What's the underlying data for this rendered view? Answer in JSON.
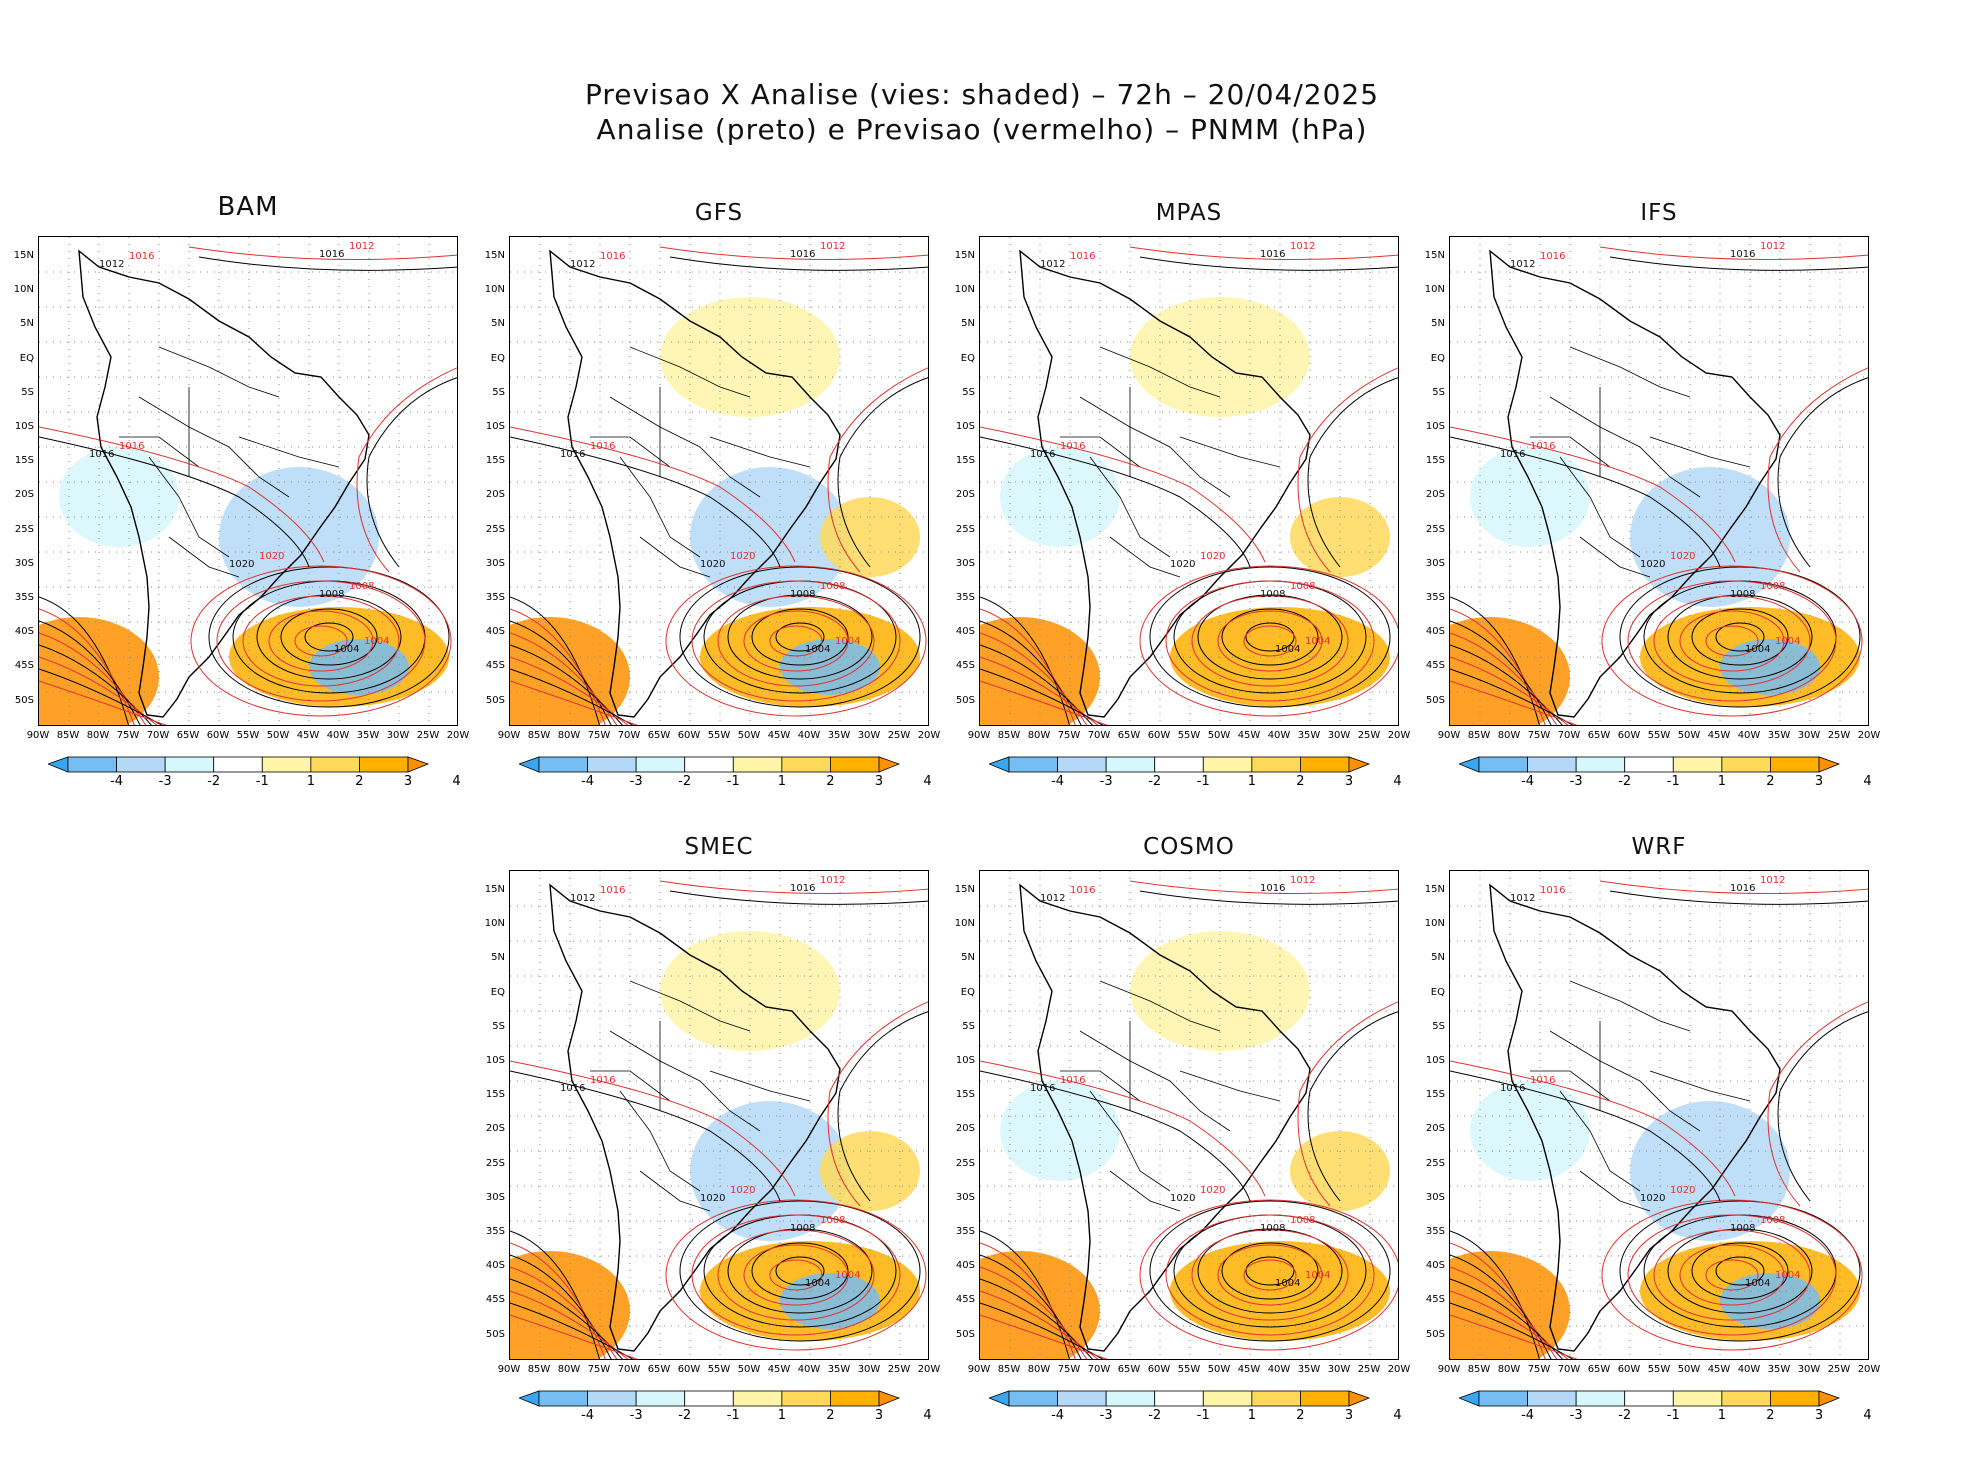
{
  "title_line1": "Previsao X Analise (vies: shaded) – 72h – 20/04/2025",
  "title_line2": "Analise (preto) e Previsao (vermelho) – PNMM (hPa)",
  "lat_labels": [
    "15N",
    "10N",
    "5N",
    "EQ",
    "5S",
    "10S",
    "15S",
    "20S",
    "25S",
    "30S",
    "35S",
    "40S",
    "45S",
    "50S"
  ],
  "lon_labels": [
    "90W",
    "85W",
    "80W",
    "75W",
    "70W",
    "65W",
    "60W",
    "55W",
    "50W",
    "45W",
    "40W",
    "35W",
    "30W",
    "25W",
    "20W"
  ],
  "colorbar": {
    "labels": [
      "-4",
      "-3",
      "-2",
      "-1",
      "1",
      "2",
      "3",
      "4"
    ],
    "colors": [
      "#3aa6f0",
      "#76bdf3",
      "#b4d8f7",
      "#d6f7fb",
      "#ffffff",
      "#fff4a8",
      "#ffd95a",
      "#ffb000",
      "#ff9000"
    ]
  },
  "panels": [
    {
      "name": "BAM"
    },
    {
      "name": "GFS"
    },
    {
      "name": "MPAS"
    },
    {
      "name": "IFS"
    },
    {
      "name": "SMEC"
    },
    {
      "name": "COSMO"
    },
    {
      "name": "WRF"
    }
  ],
  "contour_labels": {
    "black": [
      "1012",
      "1016",
      "1016",
      "1020",
      "1008",
      "1004"
    ],
    "red": [
      "1016",
      "1012",
      "1016",
      "1020",
      "1008",
      "1004"
    ]
  }
}
